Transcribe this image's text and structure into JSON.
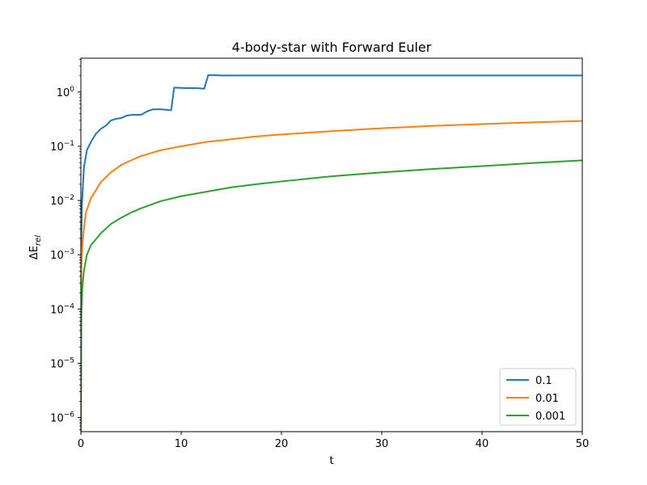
{
  "chart_data": {
    "type": "line",
    "title": "4-body-star with Forward Euler",
    "xlabel": "t",
    "ylabel": "ΔE_rel",
    "yscale": "log",
    "xlim": [
      0,
      50
    ],
    "ylim": [
      5.5e-07,
      4.2
    ],
    "grid": false,
    "legend_position": "lower-right",
    "x_ticks": [
      {
        "value": 0,
        "label": "0"
      },
      {
        "value": 10,
        "label": "10"
      },
      {
        "value": 20,
        "label": "20"
      },
      {
        "value": 30,
        "label": "30"
      },
      {
        "value": 40,
        "label": "40"
      },
      {
        "value": 50,
        "label": "50"
      }
    ],
    "y_ticks": [
      {
        "value": 1e-06,
        "base": "10",
        "exp": "−6"
      },
      {
        "value": 1e-05,
        "base": "10",
        "exp": "−5"
      },
      {
        "value": 0.0001,
        "base": "10",
        "exp": "−4"
      },
      {
        "value": 0.001,
        "base": "10",
        "exp": "−3"
      },
      {
        "value": 0.01,
        "base": "10",
        "exp": "−2"
      },
      {
        "value": 0.1,
        "base": "10",
        "exp": "−1"
      },
      {
        "value": 1,
        "base": "10",
        "exp": "0"
      }
    ],
    "series": [
      {
        "name": "0.1",
        "color": "#1f77b4",
        "points": [
          [
            0.0,
            5.5e-07
          ],
          [
            0.02,
            0.001
          ],
          [
            0.1,
            0.008
          ],
          [
            0.3,
            0.04
          ],
          [
            0.6,
            0.085
          ],
          [
            1.0,
            0.12
          ],
          [
            1.5,
            0.17
          ],
          [
            2.0,
            0.21
          ],
          [
            2.5,
            0.24
          ],
          [
            3.0,
            0.3
          ],
          [
            3.5,
            0.32
          ],
          [
            4.0,
            0.33
          ],
          [
            4.6,
            0.37
          ],
          [
            5.2,
            0.38
          ],
          [
            6.0,
            0.38
          ],
          [
            6.6,
            0.44
          ],
          [
            7.2,
            0.48
          ],
          [
            8.0,
            0.48
          ],
          [
            8.6,
            0.47
          ],
          [
            9.0,
            0.46
          ],
          [
            9.3,
            1.2
          ],
          [
            9.6,
            1.2
          ],
          [
            10.5,
            1.18
          ],
          [
            11.5,
            1.18
          ],
          [
            12.3,
            1.15
          ],
          [
            12.7,
            2.05
          ],
          [
            13.0,
            2.05
          ],
          [
            14.0,
            2.02
          ],
          [
            20.0,
            2.02
          ],
          [
            30.0,
            2.02
          ],
          [
            40.0,
            2.02
          ],
          [
            50.0,
            2.02
          ]
        ]
      },
      {
        "name": "0.01",
        "color": "#ff7f0e",
        "points": [
          [
            0.0,
            5.5e-07
          ],
          [
            0.05,
            0.0006
          ],
          [
            0.15,
            0.0015
          ],
          [
            0.3,
            0.003
          ],
          [
            0.5,
            0.006
          ],
          [
            1.0,
            0.011
          ],
          [
            2.0,
            0.022
          ],
          [
            3.0,
            0.033
          ],
          [
            4.0,
            0.045
          ],
          [
            5.0,
            0.055
          ],
          [
            6.0,
            0.066
          ],
          [
            8.0,
            0.085
          ],
          [
            10.0,
            0.1
          ],
          [
            12.5,
            0.12
          ],
          [
            15.0,
            0.135
          ],
          [
            17.5,
            0.152
          ],
          [
            20.0,
            0.165
          ],
          [
            25.0,
            0.19
          ],
          [
            30.0,
            0.215
          ],
          [
            35.0,
            0.237
          ],
          [
            40.0,
            0.257
          ],
          [
            45.0,
            0.276
          ],
          [
            50.0,
            0.293
          ]
        ]
      },
      {
        "name": "0.001",
        "color": "#2ca02c",
        "points": [
          [
            0.0,
            5.5e-07
          ],
          [
            0.05,
            8e-05
          ],
          [
            0.15,
            0.00025
          ],
          [
            0.3,
            0.0005
          ],
          [
            0.6,
            0.001
          ],
          [
            1.0,
            0.0015
          ],
          [
            2.0,
            0.0025
          ],
          [
            3.0,
            0.0037
          ],
          [
            4.0,
            0.0048
          ],
          [
            5.0,
            0.006
          ],
          [
            6.0,
            0.0072
          ],
          [
            8.0,
            0.0098
          ],
          [
            10.0,
            0.012
          ],
          [
            12.5,
            0.0145
          ],
          [
            15.0,
            0.0175
          ],
          [
            17.5,
            0.02
          ],
          [
            20.0,
            0.0225
          ],
          [
            25.0,
            0.028
          ],
          [
            30.0,
            0.033
          ],
          [
            35.0,
            0.038
          ],
          [
            40.0,
            0.043
          ],
          [
            45.0,
            0.049
          ],
          [
            50.0,
            0.055
          ]
        ]
      }
    ]
  }
}
